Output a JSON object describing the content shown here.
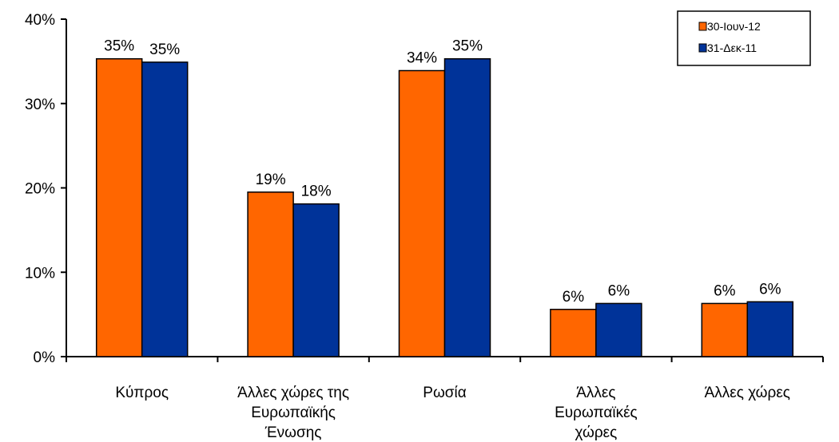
{
  "chart_data": {
    "type": "bar",
    "categories": [
      [
        "Κύπρος"
      ],
      [
        "Άλλες χώρες της",
        "Ευρωπαϊκής",
        "Ένωσης"
      ],
      [
        "Ρωσία"
      ],
      [
        "Άλλες",
        "Ευρωπαϊκές",
        "χώρες"
      ],
      [
        "Άλλες χώρες"
      ]
    ],
    "series": [
      {
        "name": "30-Ιουν-12",
        "color": "#ff6600",
        "values": [
          35.3,
          19.5,
          33.9,
          5.6,
          6.3
        ],
        "labels": [
          "35%",
          "19%",
          "34%",
          "6%",
          "6%"
        ]
      },
      {
        "name": "31-Δεκ-11",
        "color": "#003399",
        "values": [
          34.9,
          18.1,
          35.3,
          6.3,
          6.5
        ],
        "labels": [
          "35%",
          "18%",
          "35%",
          "6%",
          "6%"
        ]
      }
    ],
    "yticks": [
      "0%",
      "10%",
      "20%",
      "30%",
      "40%"
    ],
    "ylim": [
      0,
      40
    ],
    "legend": "top-right",
    "grid": false
  }
}
